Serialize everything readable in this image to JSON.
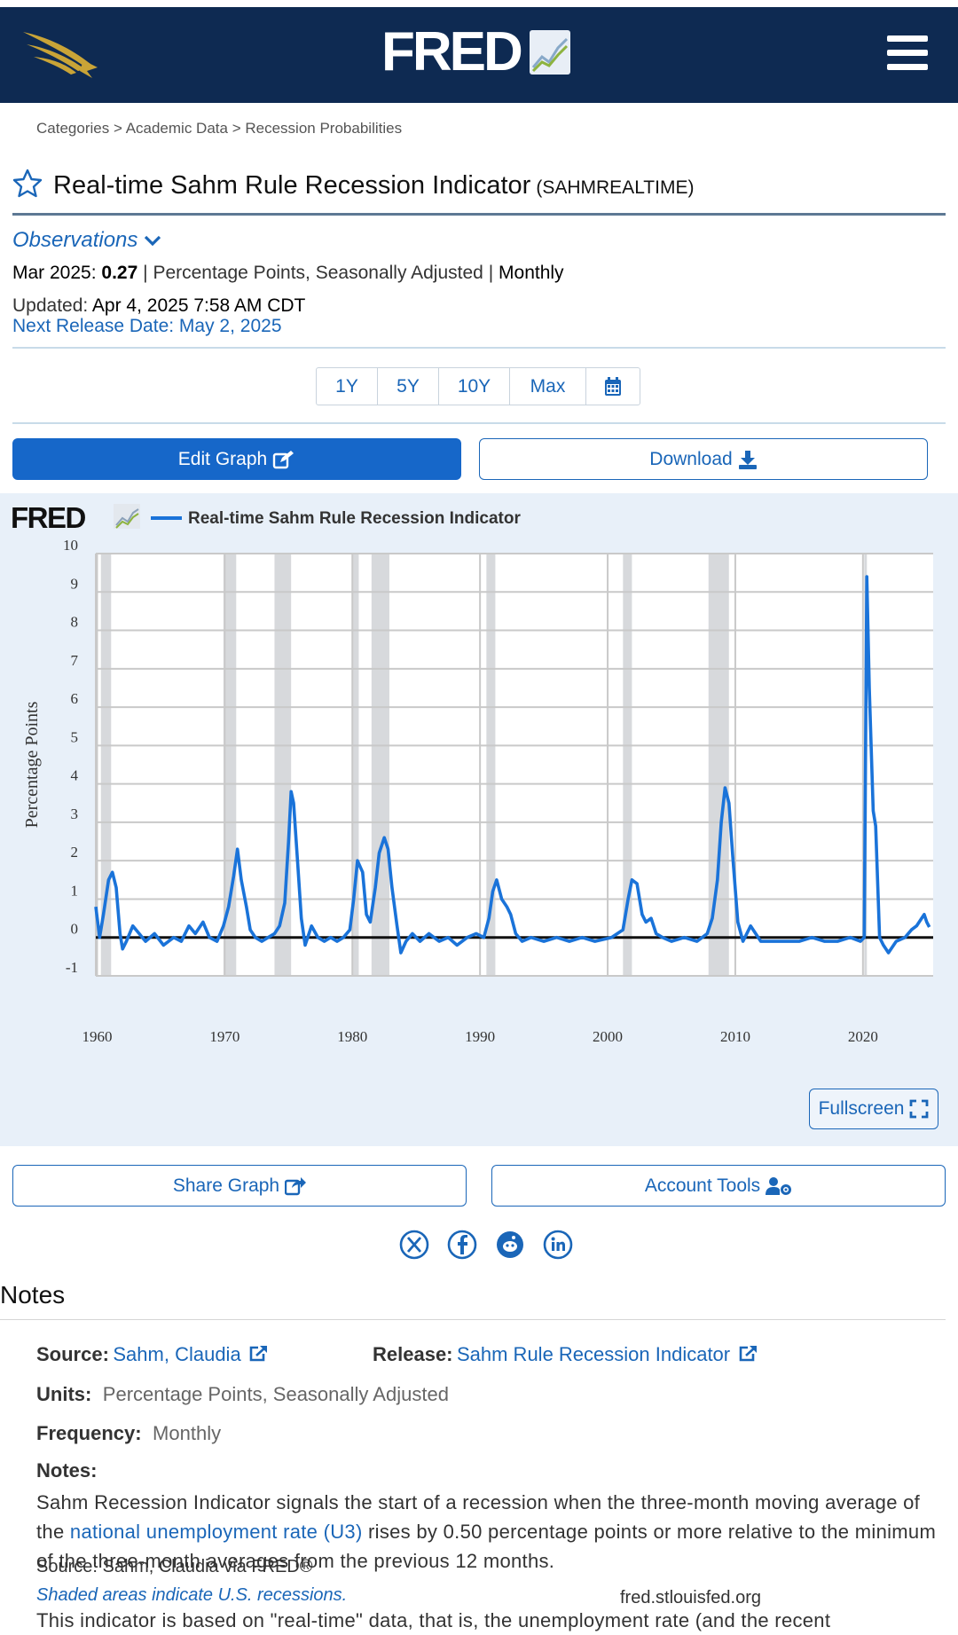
{
  "header": {
    "logo_text": "FRED",
    "menu_icon": "hamburger-icon",
    "eagle_icon": "eagle-icon"
  },
  "breadcrumb": {
    "items": [
      "Categories",
      "Academic Data",
      "Recession Probabilities"
    ],
    "separator": ">"
  },
  "series": {
    "title": "Real-time Sahm Rule Recession Indicator",
    "id": "(SAHMREALTIME)"
  },
  "observations": {
    "toggle_label": "Observations",
    "date_label": "Mar 2025:",
    "value": "0.27",
    "units": "Percentage Points, Seasonally Adjusted",
    "frequency": "Monthly",
    "updated_label": "Updated:",
    "updated_value": "Apr 4, 2025 7:58 AM CDT",
    "next_release": "Next Release Date: May 2, 2025"
  },
  "range_buttons": [
    "1Y",
    "5Y",
    "10Y",
    "Max"
  ],
  "actions": {
    "edit_graph": "Edit Graph",
    "download": "Download",
    "share_graph": "Share Graph",
    "account_tools": "Account Tools",
    "fullscreen": "Fullscreen"
  },
  "graph_footer": {
    "source": "Source: Sahm, Claudia via FRED®",
    "shaded_note": "Shaded areas indicate U.S. recessions.",
    "url": "fred.stlouisfed.org"
  },
  "chart_data": {
    "type": "line",
    "title": "Real-time Sahm Rule Recession Indicator",
    "logo_text": "FRED",
    "ylabel": "Percentage Points",
    "xlabel": "",
    "ylim": [
      -1,
      10
    ],
    "xlim": [
      1959.9,
      2025.5
    ],
    "yticks": [
      10,
      9,
      8,
      7,
      6,
      5,
      4,
      3,
      2,
      1,
      0,
      -1
    ],
    "xticks": [
      1960,
      1970,
      1980,
      1990,
      2000,
      2010,
      2020
    ],
    "grid": true,
    "line_color": "#1a73d9",
    "recession_color": "#d7d9dc",
    "recessions": [
      [
        1960.3,
        1961.1
      ],
      [
        1969.9,
        1970.9
      ],
      [
        1973.9,
        1975.2
      ],
      [
        1980.0,
        1980.5
      ],
      [
        1981.5,
        1982.9
      ],
      [
        1990.5,
        1991.2
      ],
      [
        2001.2,
        2001.9
      ],
      [
        2007.9,
        2009.5
      ],
      [
        2020.1,
        2020.3
      ]
    ],
    "series": [
      {
        "name": "Real-time Sahm Rule Recession Indicator",
        "points": [
          [
            1959.9,
            0.8
          ],
          [
            1960.2,
            0.0
          ],
          [
            1960.5,
            0.6
          ],
          [
            1960.9,
            1.5
          ],
          [
            1961.2,
            1.7
          ],
          [
            1961.5,
            1.3
          ],
          [
            1961.8,
            0.1
          ],
          [
            1962.0,
            -0.3
          ],
          [
            1962.3,
            -0.1
          ],
          [
            1962.8,
            0.3
          ],
          [
            1963.3,
            0.1
          ],
          [
            1963.8,
            -0.1
          ],
          [
            1964.5,
            0.1
          ],
          [
            1965.2,
            -0.2
          ],
          [
            1966.0,
            0.0
          ],
          [
            1966.6,
            -0.1
          ],
          [
            1967.2,
            0.3
          ],
          [
            1967.7,
            0.1
          ],
          [
            1968.3,
            0.4
          ],
          [
            1968.8,
            0.0
          ],
          [
            1969.4,
            -0.1
          ],
          [
            1969.9,
            0.3
          ],
          [
            1970.3,
            0.8
          ],
          [
            1970.7,
            1.6
          ],
          [
            1971.0,
            2.3
          ],
          [
            1971.3,
            1.5
          ],
          [
            1971.7,
            0.8
          ],
          [
            1972.0,
            0.2
          ],
          [
            1972.4,
            0.0
          ],
          [
            1972.9,
            -0.1
          ],
          [
            1973.4,
            0.0
          ],
          [
            1973.9,
            0.1
          ],
          [
            1974.3,
            0.3
          ],
          [
            1974.7,
            0.9
          ],
          [
            1975.0,
            2.5
          ],
          [
            1975.2,
            3.8
          ],
          [
            1975.4,
            3.5
          ],
          [
            1975.7,
            2.0
          ],
          [
            1976.0,
            0.5
          ],
          [
            1976.3,
            -0.2
          ],
          [
            1976.8,
            0.3
          ],
          [
            1977.3,
            0.0
          ],
          [
            1977.8,
            -0.1
          ],
          [
            1978.3,
            0.0
          ],
          [
            1978.8,
            -0.1
          ],
          [
            1979.3,
            0.0
          ],
          [
            1979.8,
            0.2
          ],
          [
            1980.1,
            1.0
          ],
          [
            1980.4,
            2.0
          ],
          [
            1980.8,
            1.7
          ],
          [
            1981.1,
            0.6
          ],
          [
            1981.4,
            0.4
          ],
          [
            1981.8,
            1.3
          ],
          [
            1982.1,
            2.2
          ],
          [
            1982.5,
            2.6
          ],
          [
            1982.8,
            2.3
          ],
          [
            1983.1,
            1.3
          ],
          [
            1983.5,
            0.3
          ],
          [
            1983.8,
            -0.4
          ],
          [
            1984.2,
            -0.1
          ],
          [
            1984.7,
            0.1
          ],
          [
            1985.3,
            -0.1
          ],
          [
            1986.0,
            0.1
          ],
          [
            1986.8,
            -0.1
          ],
          [
            1987.5,
            0.0
          ],
          [
            1988.2,
            -0.2
          ],
          [
            1989.0,
            0.0
          ],
          [
            1989.7,
            0.1
          ],
          [
            1990.3,
            0.0
          ],
          [
            1990.7,
            0.5
          ],
          [
            1991.0,
            1.2
          ],
          [
            1991.3,
            1.5
          ],
          [
            1991.7,
            1.0
          ],
          [
            1992.1,
            0.8
          ],
          [
            1992.4,
            0.6
          ],
          [
            1992.8,
            0.1
          ],
          [
            1993.3,
            -0.1
          ],
          [
            1994.0,
            0.0
          ],
          [
            1995.0,
            -0.1
          ],
          [
            1996.0,
            0.0
          ],
          [
            1997.0,
            -0.1
          ],
          [
            1998.0,
            0.0
          ],
          [
            1999.0,
            -0.1
          ],
          [
            2000.3,
            0.0
          ],
          [
            2001.2,
            0.2
          ],
          [
            2001.6,
            1.0
          ],
          [
            2001.9,
            1.5
          ],
          [
            2002.3,
            1.4
          ],
          [
            2002.7,
            0.6
          ],
          [
            2003.0,
            0.4
          ],
          [
            2003.4,
            0.5
          ],
          [
            2003.8,
            0.1
          ],
          [
            2004.3,
            0.0
          ],
          [
            2005.0,
            -0.1
          ],
          [
            2006.0,
            0.0
          ],
          [
            2007.0,
            -0.1
          ],
          [
            2007.8,
            0.1
          ],
          [
            2008.2,
            0.5
          ],
          [
            2008.6,
            1.5
          ],
          [
            2008.9,
            3.0
          ],
          [
            2009.2,
            3.9
          ],
          [
            2009.5,
            3.5
          ],
          [
            2009.8,
            2.1
          ],
          [
            2010.2,
            0.4
          ],
          [
            2010.6,
            -0.1
          ],
          [
            2011.2,
            0.3
          ],
          [
            2012.0,
            -0.1
          ],
          [
            2013.0,
            -0.1
          ],
          [
            2014.0,
            -0.1
          ],
          [
            2015.0,
            -0.1
          ],
          [
            2016.0,
            0.0
          ],
          [
            2017.0,
            -0.1
          ],
          [
            2018.0,
            -0.1
          ],
          [
            2019.0,
            0.0
          ],
          [
            2019.8,
            -0.1
          ],
          [
            2020.1,
            0.0
          ],
          [
            2020.3,
            9.4
          ],
          [
            2020.5,
            6.5
          ],
          [
            2020.8,
            3.3
          ],
          [
            2021.0,
            2.9
          ],
          [
            2021.3,
            0.0
          ],
          [
            2021.6,
            -0.2
          ],
          [
            2022.0,
            -0.4
          ],
          [
            2022.6,
            -0.1
          ],
          [
            2023.3,
            0.0
          ],
          [
            2023.8,
            0.2
          ],
          [
            2024.2,
            0.3
          ],
          [
            2024.6,
            0.5
          ],
          [
            2024.8,
            0.6
          ],
          [
            2025.0,
            0.4
          ],
          [
            2025.2,
            0.27
          ]
        ]
      }
    ]
  },
  "social_icons": [
    "x-twitter-icon",
    "facebook-icon",
    "reddit-icon",
    "linkedin-icon"
  ],
  "notes": {
    "heading": "Notes",
    "source_label": "Source:",
    "source_value": "Sahm, Claudia",
    "release_label": "Release:",
    "release_value": "Sahm Rule Recession Indicator",
    "units_label": "Units:",
    "units_value": "Percentage Points, Seasonally Adjusted",
    "frequency_label": "Frequency:",
    "frequency_value": "Monthly",
    "notes_label": "Notes:",
    "paragraph1_start": "Sahm Recession Indicator signals the start of a recession when the three-month moving average of the ",
    "paragraph1_link": "national unemployment rate (U3)",
    "paragraph1_end": " rises by 0.50 percentage points or more relative to the minimum of the three-month averages from the previous 12 months.",
    "paragraph2": "This indicator is based on \"real-time\" data, that is, the unemployment rate (and the recent"
  }
}
